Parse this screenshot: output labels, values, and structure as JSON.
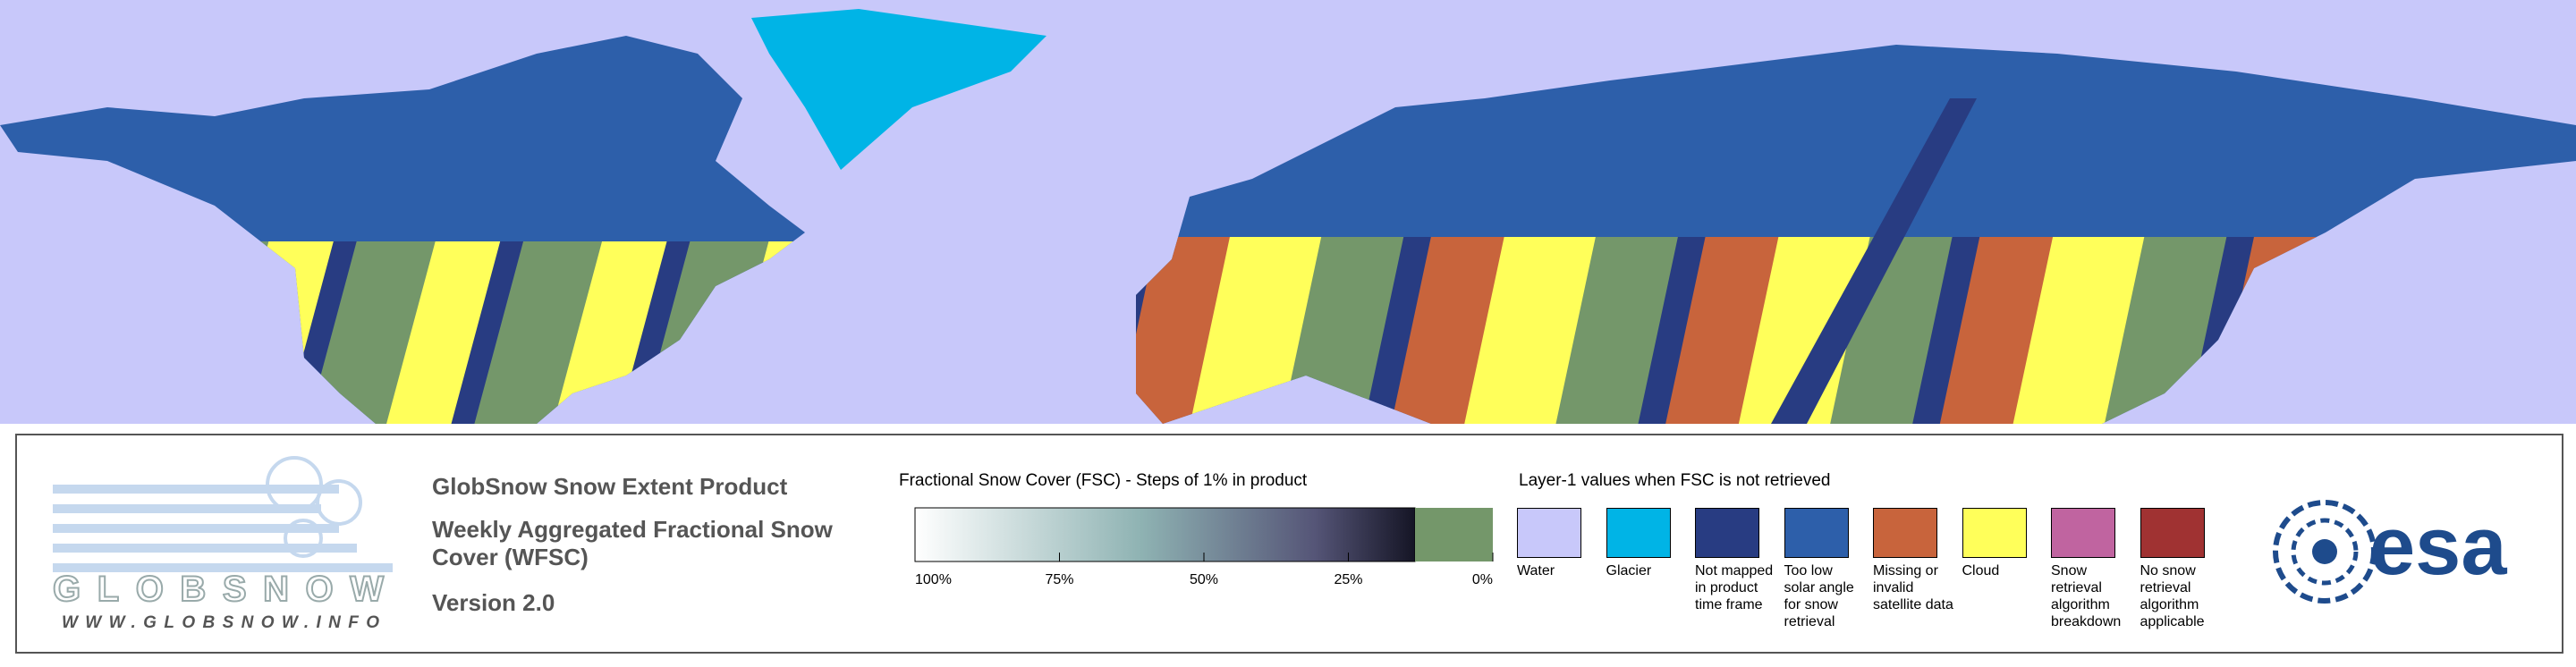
{
  "logo": {
    "name": "GLOBSNOW",
    "url": "WWW.GLOBSNOW.INFO"
  },
  "product": {
    "title": "GlobSnow Snow Extent Product",
    "subtitle": "Weekly Aggregated Fractional Snow Cover (WFSC)",
    "version": "Version 2.0"
  },
  "fsc_scale": {
    "title": "Fractional Snow Cover (FSC) - Steps of 1% in product",
    "ticks": [
      {
        "value": 100,
        "label": "100%"
      },
      {
        "value": 75,
        "label": "75%"
      },
      {
        "value": 50,
        "label": "50%"
      },
      {
        "value": 25,
        "label": "25%"
      },
      {
        "value": 0,
        "label": "0%"
      }
    ]
  },
  "layer1": {
    "title": "Layer-1 values when FSC is not retrieved",
    "classes": [
      {
        "label": "Water",
        "color": "#c8c8fa"
      },
      {
        "label": "Glacier",
        "color": "#00b4e6"
      },
      {
        "label": "Not mapped in product time frame",
        "color": "#283c82"
      },
      {
        "label": "Too low solar angle for snow retrieval",
        "color": "#2d5faa"
      },
      {
        "label": "Missing or invalid satellite data",
        "color": "#c8643c"
      },
      {
        "label": "Cloud",
        "color": "#ffff5a"
      },
      {
        "label": "Snow retrieval algorithm breakdown",
        "color": "#c064a0"
      },
      {
        "label": "No snow retrieval algorithm applicable",
        "color": "#a03232"
      }
    ]
  },
  "agency": "esa"
}
